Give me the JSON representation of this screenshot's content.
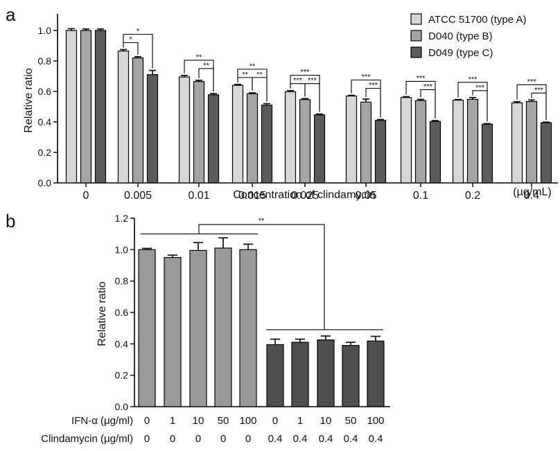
{
  "chart_data": [
    {
      "panel": "a",
      "type": "bar",
      "ylabel": "Relative ratio",
      "xlabel": "Concentration of clindamycin",
      "unit_label": "(µg/mL)",
      "categories": [
        "0",
        "0.005",
        "0.01",
        "0.015",
        "0.025",
        "0.05",
        "0.1",
        "0.2",
        "0.4"
      ],
      "ylim": [
        0,
        1.0
      ],
      "yticks": [
        "0.0",
        "0.2",
        "0.4",
        "0.6",
        "0.8",
        "1.0"
      ],
      "legend_position": "top-right",
      "series": [
        {
          "name": "ATCC 51700 (type A)",
          "color": "#d7d7d7",
          "values": [
            1.0,
            0.865,
            0.695,
            0.64,
            0.598,
            0.57,
            0.56,
            0.543,
            0.525
          ],
          "errors": [
            0.012,
            0.01,
            0.01,
            0.006,
            0.008,
            0.005,
            0.006,
            0.004,
            0.008
          ]
        },
        {
          "name": "D040 (type B)",
          "color": "#a5a5a5",
          "values": [
            1.0,
            0.82,
            0.665,
            0.585,
            0.547,
            0.53,
            0.54,
            0.548,
            0.534
          ],
          "errors": [
            0.01,
            0.008,
            0.008,
            0.006,
            0.006,
            0.02,
            0.008,
            0.012,
            0.01
          ]
        },
        {
          "name": "D049 (type C)",
          "color": "#5b5b5b",
          "values": [
            1.0,
            0.71,
            0.578,
            0.51,
            0.446,
            0.41,
            0.403,
            0.385,
            0.395
          ],
          "errors": [
            0.01,
            0.028,
            0.008,
            0.01,
            0.006,
            0.006,
            0.006,
            0.004,
            0.004
          ]
        }
      ],
      "significance": [
        {
          "category": "0.005",
          "from": 0,
          "to": 2,
          "level": 2,
          "label": "*"
        },
        {
          "category": "0.005",
          "from": 0,
          "to": 1,
          "level": 1,
          "label": "*"
        },
        {
          "category": "0.01",
          "from": 0,
          "to": 2,
          "level": 2,
          "label": "**"
        },
        {
          "category": "0.01",
          "from": 1,
          "to": 2,
          "level": 1,
          "label": "**"
        },
        {
          "category": "0.015",
          "from": 0,
          "to": 2,
          "level": 2,
          "label": "**"
        },
        {
          "category": "0.015",
          "from": 0,
          "to": 1,
          "level": 1,
          "label": "**"
        },
        {
          "category": "0.015",
          "from": 1,
          "to": 2,
          "level": 1,
          "label": "**"
        },
        {
          "category": "0.025",
          "from": 0,
          "to": 2,
          "level": 2,
          "label": "***"
        },
        {
          "category": "0.025",
          "from": 0,
          "to": 1,
          "level": 1,
          "label": "***"
        },
        {
          "category": "0.025",
          "from": 1,
          "to": 2,
          "level": 1,
          "label": "***"
        },
        {
          "category": "0.05",
          "from": 0,
          "to": 2,
          "level": 2,
          "label": "***"
        },
        {
          "category": "0.05",
          "from": 1,
          "to": 2,
          "level": 1,
          "label": "***"
        },
        {
          "category": "0.1",
          "from": 0,
          "to": 2,
          "level": 2,
          "label": "***"
        },
        {
          "category": "0.1",
          "from": 1,
          "to": 2,
          "level": 1,
          "label": "***"
        },
        {
          "category": "0.2",
          "from": 0,
          "to": 2,
          "level": 2,
          "label": "***"
        },
        {
          "category": "0.2",
          "from": 1,
          "to": 2,
          "level": 1,
          "label": "***"
        },
        {
          "category": "0.4",
          "from": 0,
          "to": 2,
          "level": 2,
          "label": "***"
        },
        {
          "category": "0.4",
          "from": 1,
          "to": 2,
          "level": 1,
          "label": "***"
        }
      ]
    },
    {
      "panel": "b",
      "type": "bar",
      "ylabel": "Relative ratio",
      "ylim": [
        0,
        1.2
      ],
      "yticks": [
        "0.0",
        "0.2",
        "0.4",
        "0.6",
        "0.8",
        "1.0",
        "1.2"
      ],
      "row_labels": [
        "IFN-α (μg/ml)",
        "Clindamycin (μg/ml)"
      ],
      "ifn": [
        "0",
        "1",
        "10",
        "50",
        "100",
        "0",
        "1",
        "10",
        "50",
        "100"
      ],
      "clindamycin": [
        "0",
        "0",
        "0",
        "0",
        "0",
        "0.4",
        "0.4",
        "0.4",
        "0.4",
        "0.4"
      ],
      "values": [
        1.0,
        0.95,
        0.995,
        1.01,
        1.0,
        0.395,
        0.41,
        0.425,
        0.39,
        0.418
      ],
      "errors": [
        0.008,
        0.015,
        0.05,
        0.065,
        0.035,
        0.035,
        0.02,
        0.025,
        0.02,
        0.03
      ],
      "colors": [
        "#9a9a9a",
        "#9a9a9a",
        "#9a9a9a",
        "#9a9a9a",
        "#9a9a9a",
        "#4f4f4f",
        "#4f4f4f",
        "#4f4f4f",
        "#4f4f4f",
        "#4f4f4f"
      ],
      "significance": [
        {
          "label": "**"
        }
      ]
    }
  ],
  "figure": {
    "panel_a_letter": "a",
    "panel_b_letter": "b"
  }
}
